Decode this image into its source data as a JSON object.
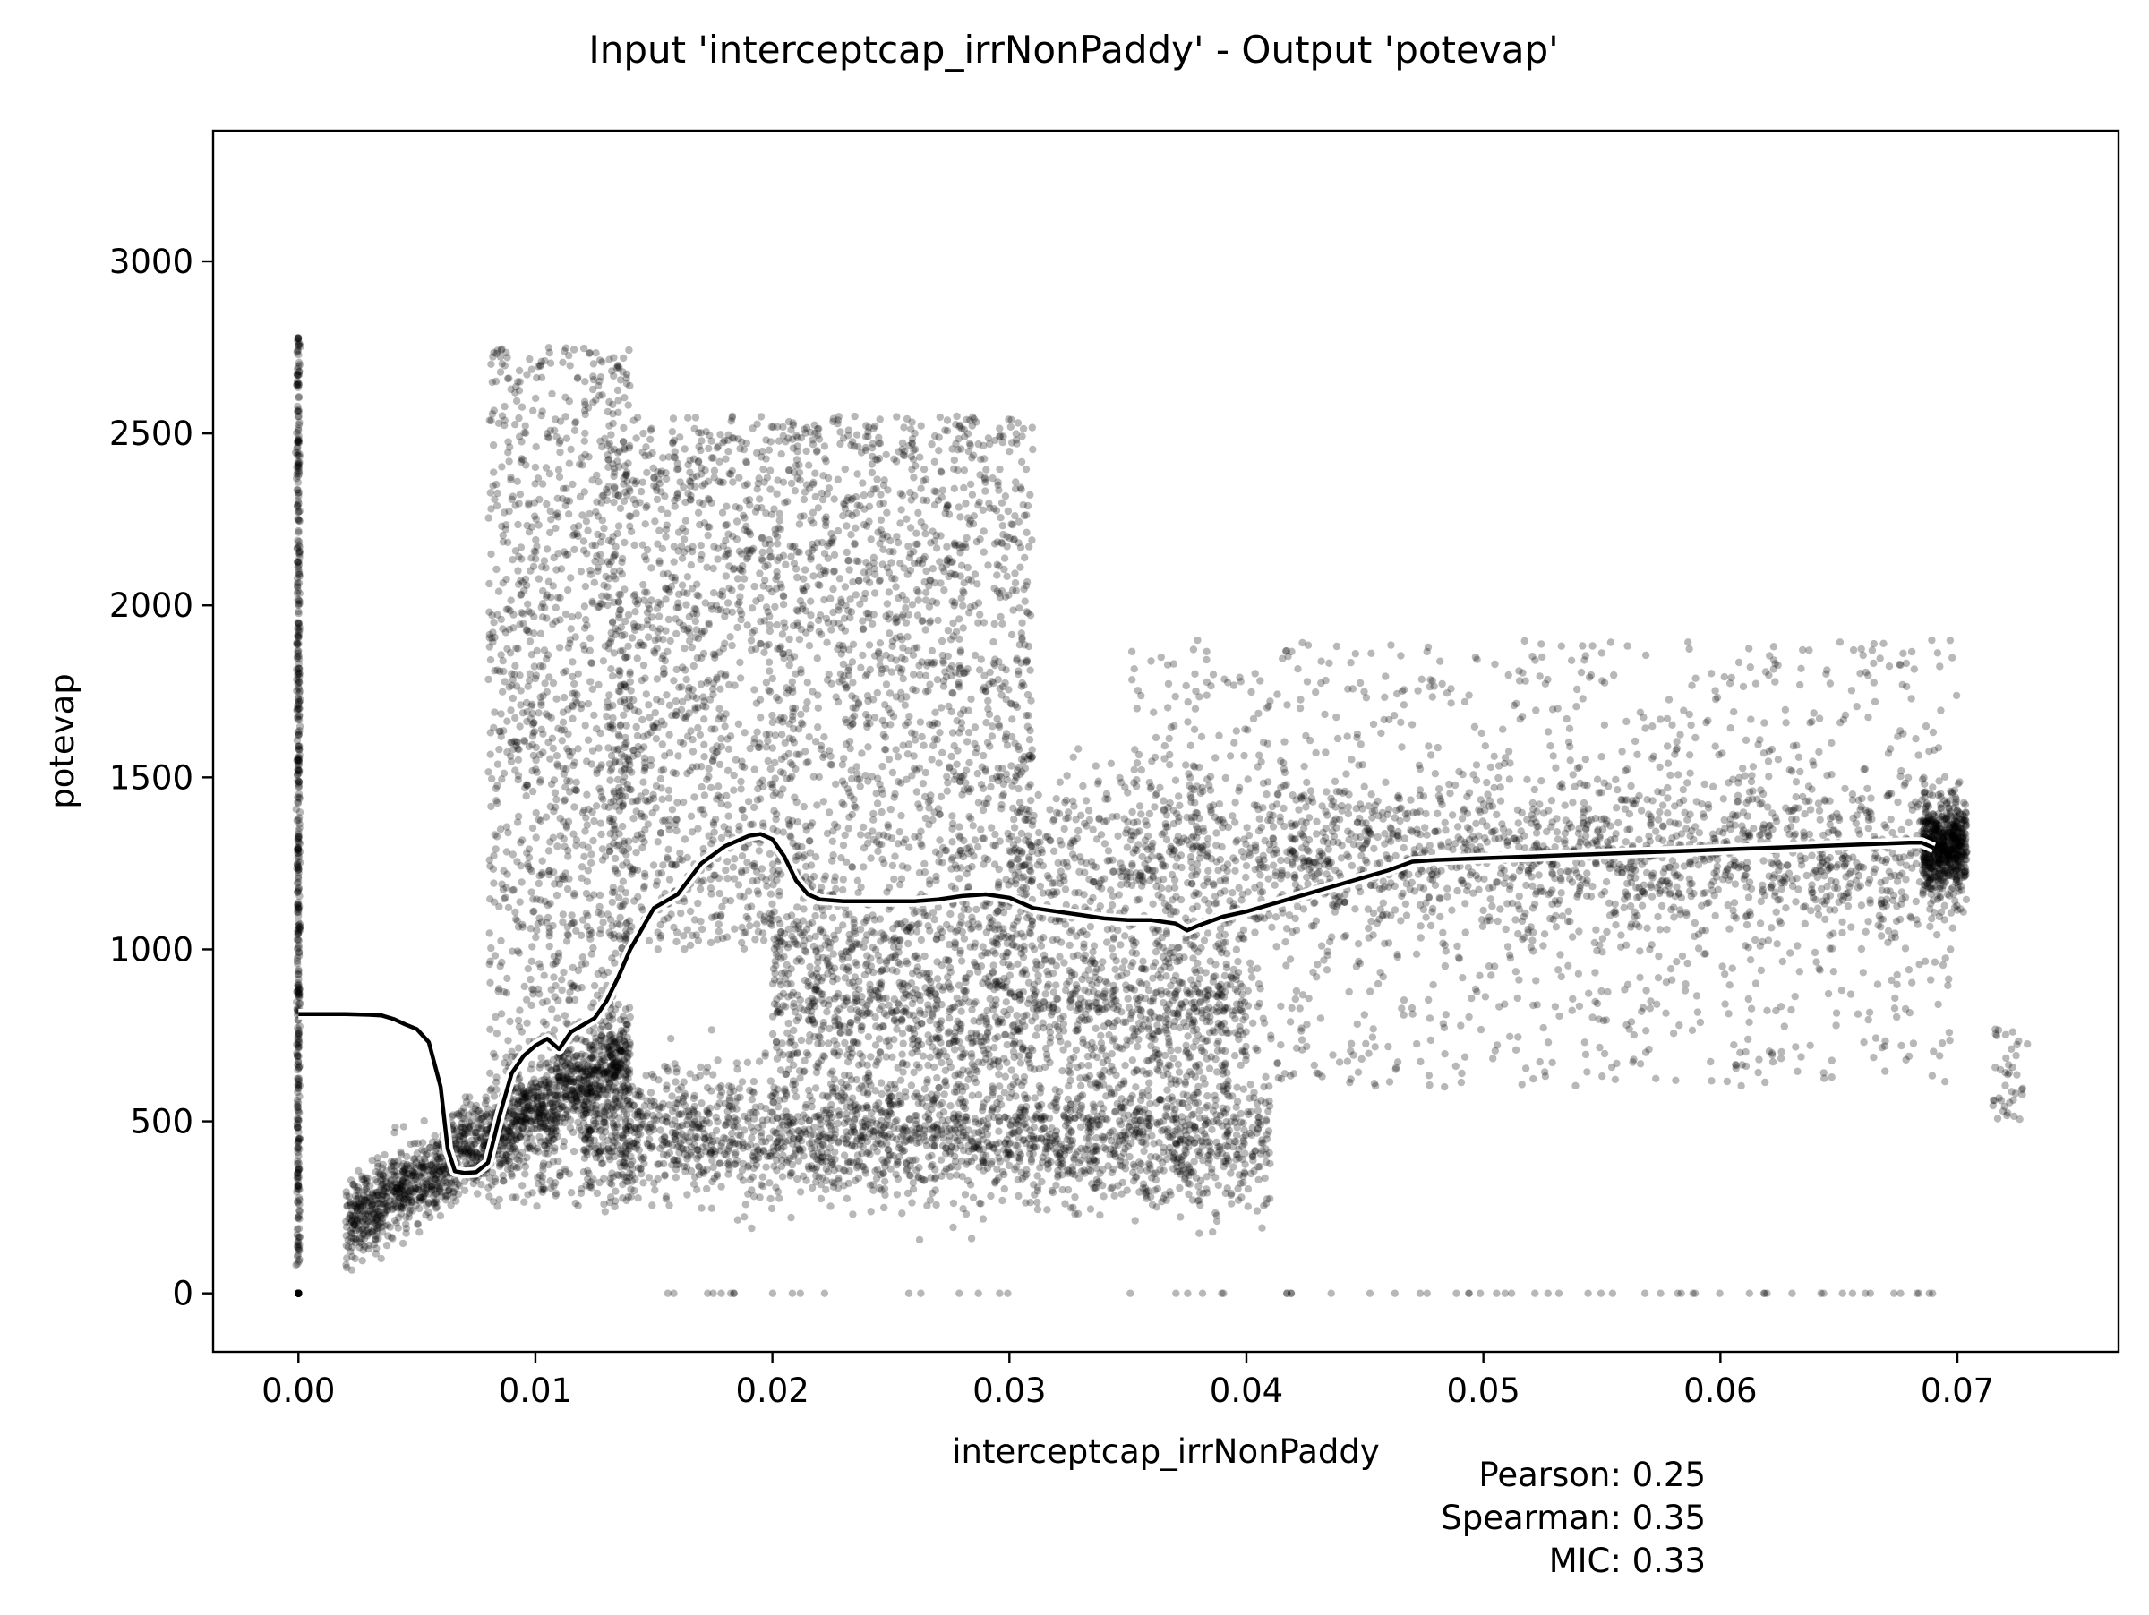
{
  "chart_data": {
    "type": "scatter",
    "title": "Input 'interceptcap_irrNonPaddy' - Output 'potevap'",
    "xlabel": "interceptcap_irrNonPaddy",
    "ylabel": "potevap",
    "xlim": [
      -0.0036,
      0.0768
    ],
    "ylim": [
      -170,
      3380
    ],
    "x_ticks": [
      "0.00",
      "0.01",
      "0.02",
      "0.03",
      "0.04",
      "0.05",
      "0.06",
      "0.07"
    ],
    "x_tick_values": [
      0,
      0.01,
      0.02,
      0.03,
      0.04,
      0.05,
      0.06,
      0.07
    ],
    "y_ticks": [
      "0",
      "500",
      "1000",
      "1500",
      "2000",
      "2500",
      "3000"
    ],
    "y_tick_values": [
      0,
      500,
      1000,
      1500,
      2000,
      2500,
      3000
    ],
    "grid": false,
    "point_color": "#000000",
    "point_opacity": 0.28,
    "trend_line": {
      "name": "",
      "x": [
        0,
        0.001,
        0.002,
        0.003,
        0.0035,
        0.004,
        0.0045,
        0.005,
        0.0055,
        0.006,
        0.0063,
        0.0066,
        0.007,
        0.0075,
        0.008,
        0.0085,
        0.009,
        0.0095,
        0.01,
        0.0105,
        0.011,
        0.0115,
        0.012,
        0.0125,
        0.013,
        0.0135,
        0.014,
        0.0145,
        0.015,
        0.016,
        0.017,
        0.018,
        0.019,
        0.0195,
        0.02,
        0.0205,
        0.021,
        0.0215,
        0.022,
        0.023,
        0.024,
        0.025,
        0.026,
        0.027,
        0.028,
        0.029,
        0.03,
        0.031,
        0.032,
        0.033,
        0.034,
        0.035,
        0.036,
        0.037,
        0.0375,
        0.038,
        0.039,
        0.04,
        0.041,
        0.042,
        0.043,
        0.044,
        0.045,
        0.046,
        0.047,
        0.048,
        0.05,
        0.052,
        0.054,
        0.056,
        0.058,
        0.06,
        0.062,
        0.064,
        0.066,
        0.068,
        0.0685,
        0.069
      ],
      "y": [
        812,
        812,
        812,
        810,
        808,
        798,
        782,
        768,
        730,
        600,
        420,
        355,
        350,
        352,
        380,
        520,
        640,
        690,
        720,
        740,
        710,
        760,
        780,
        800,
        850,
        920,
        1000,
        1060,
        1120,
        1160,
        1250,
        1300,
        1330,
        1335,
        1320,
        1270,
        1200,
        1160,
        1145,
        1140,
        1140,
        1140,
        1140,
        1145,
        1155,
        1160,
        1150,
        1120,
        1110,
        1100,
        1090,
        1085,
        1085,
        1075,
        1055,
        1070,
        1095,
        1110,
        1130,
        1150,
        1170,
        1190,
        1210,
        1230,
        1255,
        1260,
        1265,
        1270,
        1275,
        1280,
        1285,
        1290,
        1295,
        1300,
        1305,
        1310,
        1310,
        1295
      ]
    },
    "annotations": [
      "Pearson: 0.25",
      "Spearman: 0.35",
      "MIC: 0.33"
    ]
  }
}
